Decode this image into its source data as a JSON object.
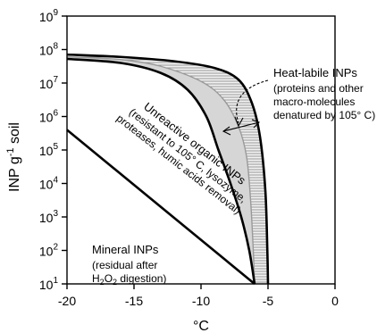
{
  "chart_data": {
    "type": "area",
    "xlabel": "°C",
    "ylabel": "INP g",
    "ylabel_sup": "-1",
    "ylabel_tail": " soil",
    "xlim": [
      -20,
      0
    ],
    "ylim_log10": [
      1,
      9
    ],
    "log_scale_y": true,
    "x_ticks": [
      -20,
      -15,
      -10,
      -5,
      0
    ],
    "y_ticks": [
      {
        "exp": 1,
        "base": "10",
        "sup": "1"
      },
      {
        "exp": 2,
        "base": "10",
        "sup": "2"
      },
      {
        "exp": 3,
        "base": "10",
        "sup": "3"
      },
      {
        "exp": 4,
        "base": "10",
        "sup": "4"
      },
      {
        "exp": 5,
        "base": "10",
        "sup": "5"
      },
      {
        "exp": 6,
        "base": "10",
        "sup": "6"
      },
      {
        "exp": 7,
        "base": "10",
        "sup": "7"
      },
      {
        "exp": 8,
        "base": "10",
        "sup": "8"
      },
      {
        "exp": 9,
        "base": "10",
        "sup": "9"
      }
    ],
    "series": [
      {
        "key": "total",
        "points": [
          [
            -20,
            7.85
          ],
          [
            -16,
            7.78
          ],
          [
            -12,
            7.65
          ],
          [
            -9,
            7.45
          ],
          [
            -7.2,
            7.1
          ],
          [
            -6.2,
            6.4
          ],
          [
            -5.6,
            5.4
          ],
          [
            -5.2,
            3.8
          ],
          [
            -5.05,
            2.0
          ],
          [
            -5.0,
            1.0
          ]
        ]
      },
      {
        "key": "unheated_lower",
        "points": [
          [
            -20,
            7.78
          ],
          [
            -16,
            7.7
          ],
          [
            -13,
            7.5
          ],
          [
            -10,
            7.05
          ],
          [
            -8.3,
            6.5
          ],
          [
            -7.2,
            5.7
          ],
          [
            -6.6,
            4.8
          ],
          [
            -6.3,
            3.5
          ],
          [
            -6.1,
            2.0
          ],
          [
            -6.0,
            1.0
          ]
        ]
      },
      {
        "key": "heated",
        "points": [
          [
            -20,
            7.72
          ],
          [
            -16,
            7.6
          ],
          [
            -13,
            7.3
          ],
          [
            -11,
            6.8
          ],
          [
            -9.6,
            6.0
          ],
          [
            -8.7,
            5.0
          ],
          [
            -7.8,
            4.0
          ],
          [
            -7.0,
            3.0
          ],
          [
            -6.4,
            2.0
          ],
          [
            -6.0,
            1.0
          ]
        ]
      },
      {
        "key": "mineral",
        "points": [
          [
            -20,
            5.6
          ],
          [
            -6.0,
            1.0
          ]
        ]
      }
    ],
    "annotations": {
      "heat_labile": {
        "title": "Heat-labile INPs",
        "lines": [
          "(proteins and other",
          "macro-molecules",
          "denatured by 105° C)"
        ]
      },
      "unreactive": {
        "title": "Unreactive organic INPs",
        "lines": [
          "(resistant to 105° C, lysozyme,",
          "proteases, humic acids removal)"
        ]
      },
      "mineral": {
        "title": "Mineral INPs",
        "lines": [
          "(residual after"
        ],
        "last_line_pre": "H",
        "last_line_sub1": "2",
        "last_line_mid": "O",
        "last_line_sub2": "2",
        "last_line_post": " digestion)"
      }
    }
  }
}
